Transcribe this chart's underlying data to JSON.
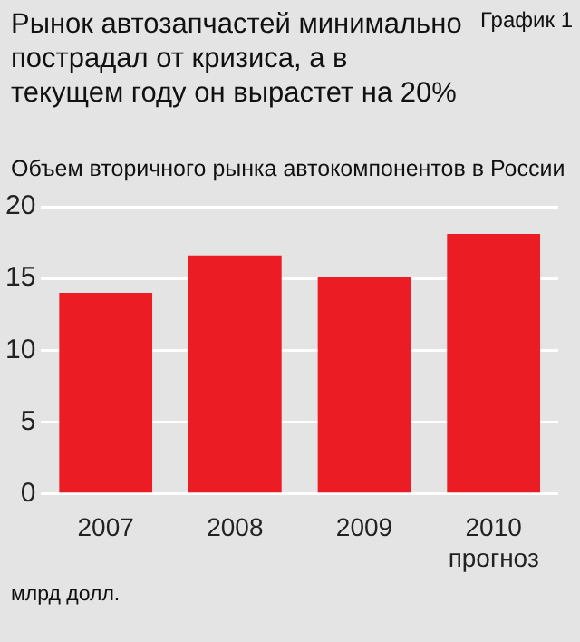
{
  "chart_data": {
    "type": "bar",
    "title": "Рынок автозапчастей минимально пострадал от кризиса, а в текущем году он вырастет на 20%",
    "subtitle": "Объем вторичного рынка автокомпонентов в России",
    "ylabel": "млрд долл.",
    "annotations": [
      "График 1"
    ],
    "categories": [
      "2007",
      "2008",
      "2009",
      "2010\nпрогноз"
    ],
    "values": [
      14,
      16.6,
      15.1,
      18.1
    ],
    "color": "#ec1c24",
    "ylim": [
      0,
      20
    ],
    "yticks": [
      0,
      5,
      10,
      15,
      20
    ],
    "grid": "y"
  }
}
